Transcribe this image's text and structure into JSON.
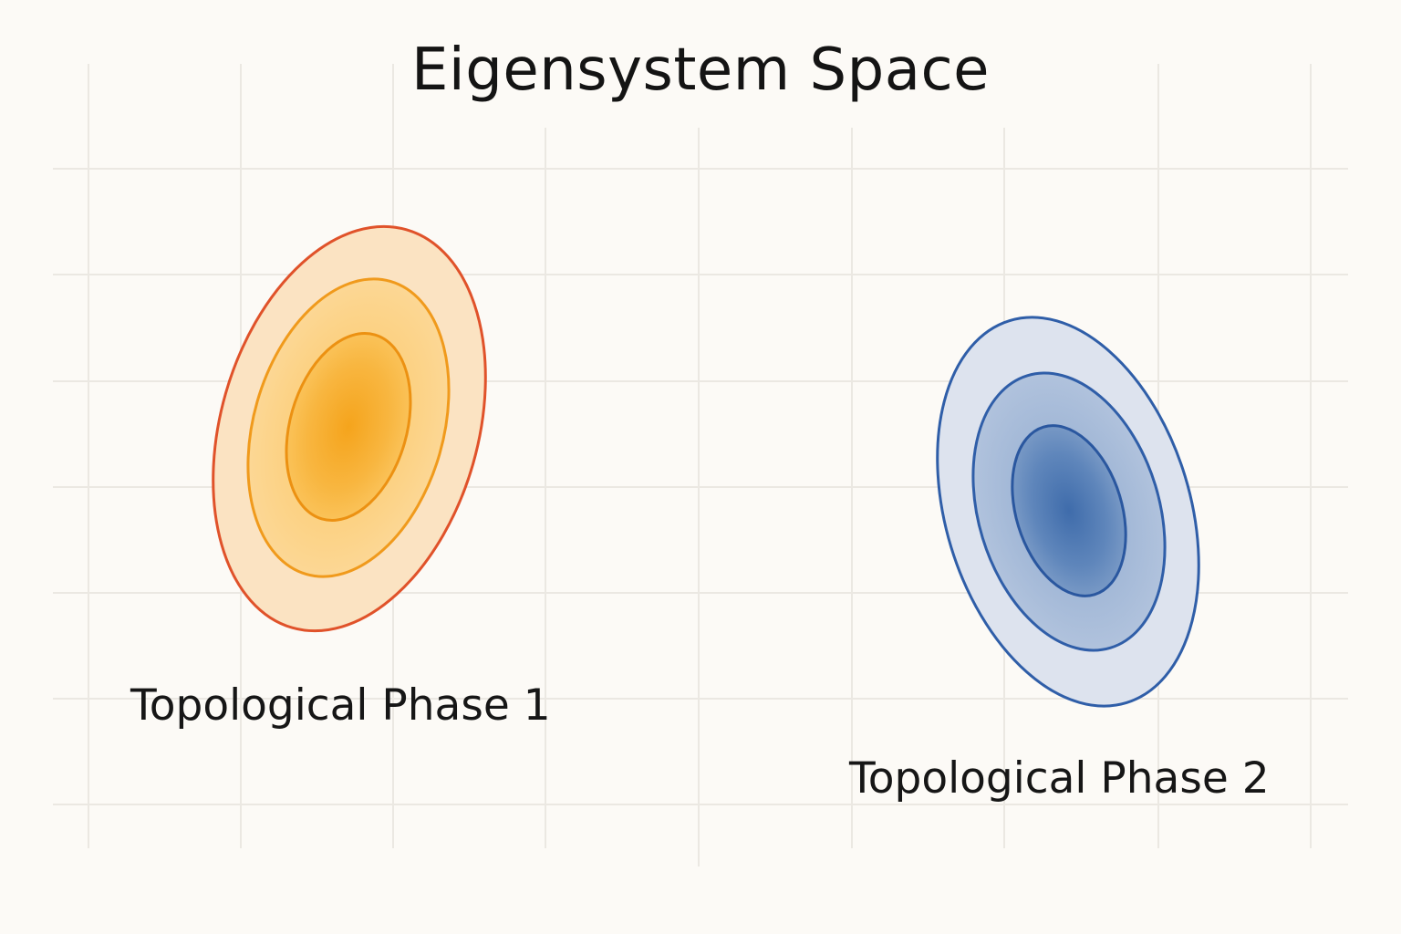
{
  "diagram": {
    "title": "Eigensystem Space",
    "phases": [
      {
        "label": "Topological Phase 1",
        "color_family": "orange",
        "outer_stroke": "#e0522a",
        "inner_stroke": "#f09a1c",
        "core_color": "#f5a31e",
        "fill_light": "#fbe3c2"
      },
      {
        "label": "Topological Phase 2",
        "color_family": "blue",
        "outer_stroke": "#2f5ea8",
        "inner_stroke": "#2f5ea8",
        "core_color": "#3d6aa8",
        "fill_light": "#dde3ee"
      }
    ],
    "grid_color": "#ebe8e2",
    "background": "#fcfaf6"
  }
}
